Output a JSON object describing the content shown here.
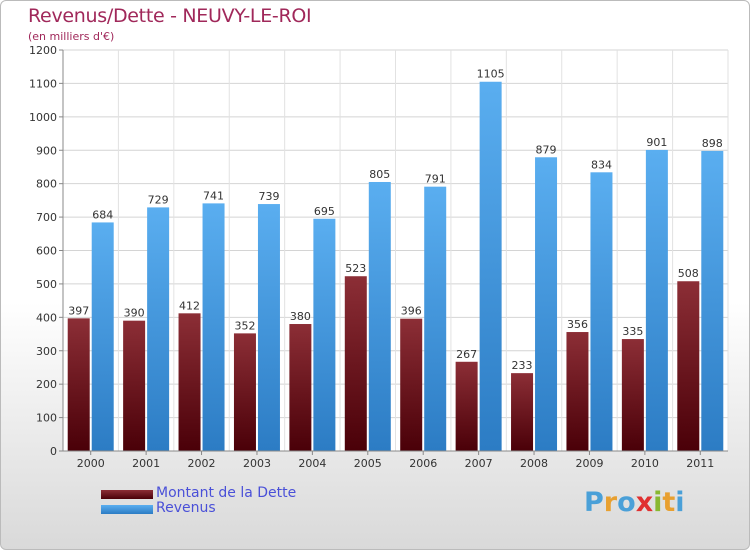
{
  "header": {
    "title": "Revenus/Dette - NEUVY-LE-ROI",
    "subtitle": "(en milliers d'€)"
  },
  "brand": {
    "letters": [
      "P",
      "r",
      "o",
      "x",
      "i",
      "t",
      "i"
    ],
    "colors": [
      "#4aa0d8",
      "#e8a030",
      "#4aa0d8",
      "#e03030",
      "#88b830",
      "#e8a030",
      "#4aa0d8"
    ]
  },
  "colors": {
    "dette_top": "#8c2e36",
    "dette_bottom": "#4a0008",
    "revenus_top": "#5aaef0",
    "revenus_bottom": "#2c7cc4",
    "legend_text": "#4a50d8",
    "title": "#a0285a"
  },
  "chart_data": {
    "type": "bar",
    "title": "Revenus/Dette - NEUVY-LE-ROI",
    "subtitle": "(en milliers d'€)",
    "categories": [
      "2000",
      "2001",
      "2002",
      "2003",
      "2004",
      "2005",
      "2006",
      "2007",
      "2008",
      "2009",
      "2010",
      "2011"
    ],
    "series": [
      {
        "name": "Montant de la Dette",
        "values": [
          397,
          390,
          412,
          352,
          380,
          523,
          396,
          267,
          233,
          356,
          335,
          508
        ]
      },
      {
        "name": "Revenus",
        "values": [
          684,
          729,
          741,
          739,
          695,
          805,
          791,
          1105,
          879,
          834,
          901,
          898
        ]
      }
    ],
    "ylim": [
      0,
      1200
    ],
    "yticks": [
      0,
      100,
      200,
      300,
      400,
      500,
      600,
      700,
      800,
      900,
      1000,
      1100,
      1200
    ],
    "grid": true,
    "legend_position": "bottom-left"
  }
}
